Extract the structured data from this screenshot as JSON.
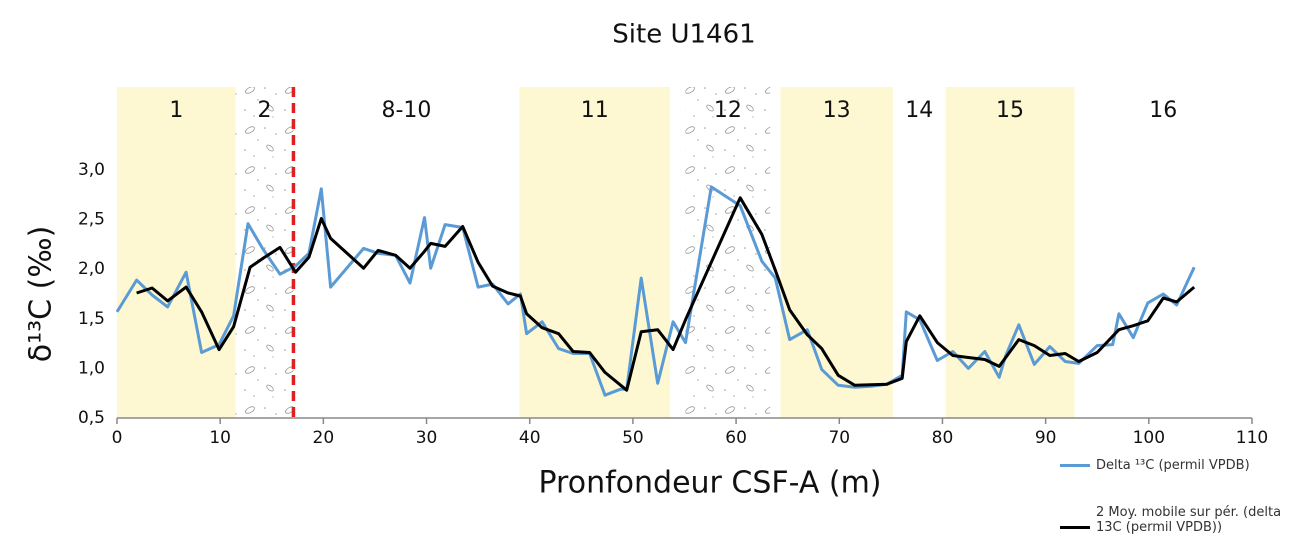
{
  "chart_data": {
    "type": "line",
    "title": "Site U1461",
    "x_label": "Pronfondeur CSF-A (m)",
    "y_label": "δ¹³C (‰)",
    "xlim": [
      0,
      110
    ],
    "xticks": [
      0,
      10,
      20,
      30,
      40,
      50,
      60,
      70,
      80,
      90,
      100,
      110
    ],
    "ylim": [
      0.5,
      3.0
    ],
    "yticks": [
      {
        "value": 0.5,
        "label": "0,5"
      },
      {
        "value": 1.0,
        "label": "1,0"
      },
      {
        "value": 1.5,
        "label": "1,5"
      },
      {
        "value": 2.0,
        "label": "2,0"
      },
      {
        "value": 2.5,
        "label": "2,5"
      },
      {
        "value": 3.0,
        "label": "3,0"
      }
    ],
    "grid": false,
    "legend": "bottom-right",
    "zones": [
      {
        "label": "1",
        "x0": 0,
        "x1": 11.5,
        "fill": "#fdf8d2"
      },
      {
        "label": "2",
        "x0": 11.5,
        "x1": 17.1,
        "fill": "stipple"
      },
      {
        "label": "8-10",
        "x0": 17.1,
        "x1": 39,
        "fill": null
      },
      {
        "label": "11",
        "x0": 39,
        "x1": 53.6,
        "fill": "#fdf8d2"
      },
      {
        "label": "12",
        "x0": 55.1,
        "x1": 63.3,
        "fill": "stipple"
      },
      {
        "label": "13",
        "x0": 64.3,
        "x1": 75.2,
        "fill": "#fdf8d2"
      },
      {
        "label": "14",
        "x0": 75.2,
        "x1": 80.3,
        "fill": null
      },
      {
        "label": "15",
        "x0": 80.3,
        "x1": 92.8,
        "fill": "#fdf8d2"
      },
      {
        "label": "16",
        "x0": 92.8,
        "x1": 110,
        "fill": null
      }
    ],
    "marker_line": {
      "x": 17.1,
      "color": "#e02020"
    },
    "series": [
      {
        "name": "Delta ¹³C (permil VPDB)",
        "color": "#5b9bd5",
        "width": 3,
        "x": [
          0,
          1.9,
          3.4,
          4.9,
          6.7,
          8.2,
          9.9,
          11.3,
          12.7,
          14.1,
          15.8,
          17.3,
          18.6,
          19.8,
          20.7,
          23.9,
          25.3,
          27.0,
          28.4,
          29.8,
          30.4,
          31.8,
          32.9,
          33.5,
          35.0,
          36.4,
          37.9,
          39.1,
          39.7,
          41.2,
          42.8,
          44.2,
          45.8,
          47.3,
          48.8,
          49.4,
          50.8,
          52.4,
          53.9,
          55.1,
          57.6,
          60.4,
          62.5,
          63.8,
          65.2,
          66.9,
          68.3,
          69.9,
          71.5,
          73.1,
          74.6,
          76.1,
          76.5,
          77.8,
          79.5,
          81.0,
          82.5,
          84.1,
          85.5,
          86.1,
          87.4,
          88.9,
          90.4,
          91.9,
          93.2,
          95.0,
          96.5,
          97.1,
          98.5,
          99.9,
          101.4,
          102.7,
          104.4
        ],
        "values": [
          1.57,
          1.89,
          1.74,
          1.62,
          1.97,
          1.16,
          1.24,
          1.53,
          2.46,
          2.21,
          1.95,
          2.03,
          2.16,
          2.81,
          1.82,
          2.21,
          2.16,
          2.14,
          1.86,
          2.52,
          2.01,
          2.45,
          2.43,
          2.42,
          1.82,
          1.85,
          1.65,
          1.75,
          1.35,
          1.47,
          1.2,
          1.15,
          1.15,
          0.73,
          0.79,
          0.79,
          1.91,
          0.85,
          1.47,
          1.26,
          2.83,
          2.64,
          2.08,
          1.91,
          1.29,
          1.39,
          0.99,
          0.83,
          0.81,
          0.82,
          0.84,
          0.93,
          1.57,
          1.49,
          1.08,
          1.17,
          1.0,
          1.17,
          0.91,
          1.12,
          1.44,
          1.04,
          1.22,
          1.07,
          1.05,
          1.23,
          1.24,
          1.55,
          1.31,
          1.66,
          1.75,
          1.64,
          2.02
        ]
      },
      {
        "name": "2 Moy. mobile sur pér. (delta 13C (permil VPDB))",
        "color": "#000000",
        "width": 3,
        "x": [
          1.9,
          3.4,
          4.9,
          6.7,
          8.2,
          9.9,
          11.3,
          12.9,
          14.3,
          15.8,
          17.3,
          18.6,
          19.8,
          20.7,
          23.9,
          25.3,
          27.0,
          28.4,
          29.8,
          30.4,
          31.8,
          33.5,
          35.0,
          36.4,
          37.9,
          39.1,
          39.7,
          41.2,
          42.8,
          44.2,
          45.8,
          47.3,
          49.4,
          50.8,
          52.4,
          53.9,
          55.1,
          60.4,
          62.5,
          63.8,
          65.2,
          66.9,
          68.3,
          69.9,
          71.5,
          74.6,
          76.1,
          76.5,
          77.8,
          79.5,
          81.0,
          82.5,
          84.1,
          85.5,
          87.4,
          88.9,
          90.4,
          91.9,
          93.2,
          95.0,
          97.1,
          98.5,
          99.9,
          101.4,
          102.7,
          104.4
        ],
        "values": [
          1.76,
          1.81,
          1.68,
          1.82,
          1.57,
          1.19,
          1.42,
          2.02,
          2.12,
          2.22,
          1.97,
          2.12,
          2.51,
          2.31,
          2.01,
          2.19,
          2.14,
          2.01,
          2.18,
          2.26,
          2.23,
          2.43,
          2.07,
          1.83,
          1.76,
          1.73,
          1.55,
          1.41,
          1.35,
          1.17,
          1.16,
          0.96,
          0.78,
          1.37,
          1.39,
          1.19,
          1.49,
          2.72,
          2.35,
          1.99,
          1.59,
          1.34,
          1.2,
          0.93,
          0.83,
          0.84,
          0.9,
          1.27,
          1.53,
          1.26,
          1.13,
          1.11,
          1.09,
          1.02,
          1.29,
          1.23,
          1.13,
          1.15,
          1.07,
          1.16,
          1.39,
          1.43,
          1.48,
          1.71,
          1.67,
          1.82
        ]
      }
    ]
  }
}
